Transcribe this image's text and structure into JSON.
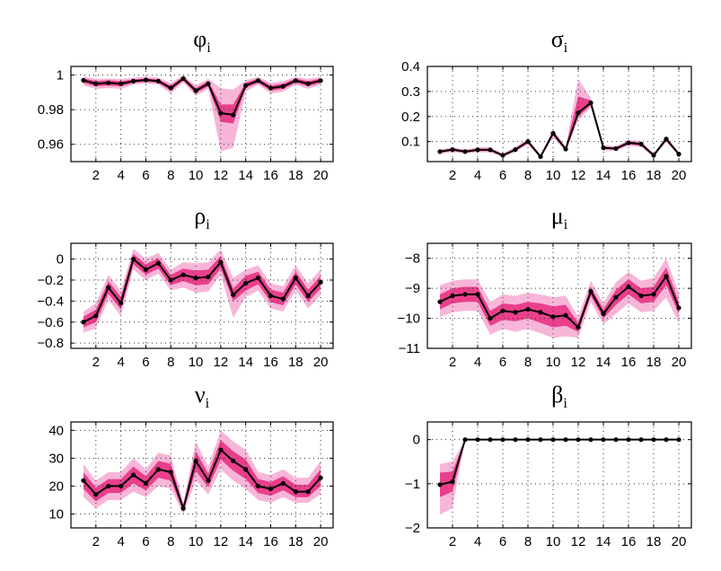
{
  "chart_data": [
    {
      "type": "line",
      "title": "φ",
      "subscript": "i",
      "x": [
        1,
        2,
        3,
        4,
        5,
        6,
        7,
        8,
        9,
        10,
        11,
        12,
        13,
        14,
        15,
        16,
        17,
        18,
        19,
        20
      ],
      "xlim": [
        0,
        21
      ],
      "ylim": [
        0.95,
        1.005
      ],
      "xticks": [
        "2",
        "4",
        "6",
        "8",
        "10",
        "12",
        "14",
        "16",
        "18",
        "20"
      ],
      "yticks": [
        {
          "value": 0.96,
          "label": "0.96"
        },
        {
          "value": 0.98,
          "label": "0.98"
        },
        {
          "value": 1.0,
          "label": "1"
        }
      ],
      "series": [
        {
          "name": "median",
          "values": [
            0.997,
            0.995,
            0.9955,
            0.995,
            0.9965,
            0.9972,
            0.9965,
            0.9925,
            0.998,
            0.991,
            0.995,
            0.978,
            0.977,
            0.994,
            0.9968,
            0.9925,
            0.9935,
            0.9968,
            0.995,
            0.9968
          ]
        },
        {
          "name": "inner_low",
          "values": [
            0.9955,
            0.9935,
            0.994,
            0.9935,
            0.9955,
            0.9962,
            0.9955,
            0.991,
            0.9968,
            0.9895,
            0.9935,
            0.973,
            0.972,
            0.9925,
            0.9955,
            0.991,
            0.992,
            0.9955,
            0.9935,
            0.9955
          ]
        },
        {
          "name": "inner_high",
          "values": [
            0.9982,
            0.9965,
            0.997,
            0.9965,
            0.9975,
            0.998,
            0.9975,
            0.994,
            0.999,
            0.9925,
            0.9965,
            0.983,
            0.983,
            0.9955,
            0.998,
            0.994,
            0.995,
            0.998,
            0.9965,
            0.998
          ]
        },
        {
          "name": "outer_low",
          "values": [
            0.994,
            0.992,
            0.9925,
            0.992,
            0.9945,
            0.9952,
            0.9945,
            0.9893,
            0.9958,
            0.988,
            0.992,
            0.956,
            0.958,
            0.9905,
            0.9945,
            0.9893,
            0.9905,
            0.9945,
            0.992,
            0.9945
          ]
        },
        {
          "name": "outer_high",
          "values": [
            0.9992,
            0.9978,
            0.998,
            0.9978,
            0.9985,
            0.999,
            0.9985,
            0.9955,
            0.9998,
            0.994,
            0.9978,
            0.9925,
            0.9915,
            0.997,
            0.999,
            0.9955,
            0.9965,
            0.999,
            0.9978,
            0.999
          ]
        }
      ]
    },
    {
      "type": "line",
      "title": "σ",
      "subscript": "i",
      "x": [
        1,
        2,
        3,
        4,
        5,
        6,
        7,
        8,
        9,
        10,
        11,
        12,
        13,
        14,
        15,
        16,
        17,
        18,
        19,
        20
      ],
      "xlim": [
        0,
        21
      ],
      "ylim": [
        0.02,
        0.4
      ],
      "xticks": [
        "2",
        "4",
        "6",
        "8",
        "10",
        "12",
        "14",
        "16",
        "18",
        "20"
      ],
      "yticks": [
        {
          "value": 0.1,
          "label": "0.1"
        },
        {
          "value": 0.2,
          "label": "0.2"
        },
        {
          "value": 0.3,
          "label": "0.3"
        },
        {
          "value": 0.4,
          "label": "0.4"
        }
      ],
      "series": [
        {
          "name": "median",
          "values": [
            0.06,
            0.068,
            0.06,
            0.067,
            0.067,
            0.045,
            0.068,
            0.1,
            0.04,
            0.133,
            0.07,
            0.215,
            0.255,
            0.075,
            0.072,
            0.095,
            0.09,
            0.045,
            0.11,
            0.05
          ]
        },
        {
          "name": "inner_low",
          "values": [
            0.056,
            0.063,
            0.056,
            0.062,
            0.062,
            0.041,
            0.063,
            0.094,
            0.036,
            0.125,
            0.065,
            0.2,
            0.245,
            0.07,
            0.067,
            0.089,
            0.084,
            0.041,
            0.104,
            0.046
          ]
        },
        {
          "name": "inner_high",
          "values": [
            0.064,
            0.073,
            0.064,
            0.072,
            0.072,
            0.049,
            0.073,
            0.106,
            0.044,
            0.141,
            0.075,
            0.28,
            0.265,
            0.08,
            0.077,
            0.101,
            0.096,
            0.049,
            0.116,
            0.054
          ]
        },
        {
          "name": "outer_low",
          "values": [
            0.052,
            0.058,
            0.052,
            0.057,
            0.057,
            0.037,
            0.058,
            0.088,
            0.032,
            0.117,
            0.06,
            0.185,
            0.235,
            0.065,
            0.062,
            0.083,
            0.078,
            0.037,
            0.098,
            0.042
          ]
        },
        {
          "name": "outer_high",
          "values": [
            0.068,
            0.078,
            0.068,
            0.077,
            0.077,
            0.053,
            0.078,
            0.112,
            0.048,
            0.149,
            0.08,
            0.35,
            0.275,
            0.085,
            0.082,
            0.107,
            0.102,
            0.053,
            0.122,
            0.058
          ]
        }
      ]
    },
    {
      "type": "line",
      "title": "ρ",
      "subscript": "i",
      "x": [
        1,
        2,
        3,
        4,
        5,
        6,
        7,
        8,
        9,
        10,
        11,
        12,
        13,
        14,
        15,
        16,
        17,
        18,
        19,
        20
      ],
      "xlim": [
        0,
        21
      ],
      "ylim": [
        -0.85,
        0.15
      ],
      "xticks": [
        "2",
        "4",
        "6",
        "8",
        "10",
        "12",
        "14",
        "16",
        "18",
        "20"
      ],
      "yticks": [
        {
          "value": -0.8,
          "label": "−0.8"
        },
        {
          "value": -0.6,
          "label": "−0.6"
        },
        {
          "value": -0.4,
          "label": "−0.4"
        },
        {
          "value": -0.2,
          "label": "−0.2"
        },
        {
          "value": 0,
          "label": "0"
        }
      ],
      "series": [
        {
          "name": "median",
          "values": [
            -0.6,
            -0.54,
            -0.27,
            -0.42,
            0.0,
            -0.1,
            -0.04,
            -0.2,
            -0.15,
            -0.18,
            -0.17,
            -0.03,
            -0.34,
            -0.23,
            -0.18,
            -0.35,
            -0.38,
            -0.18,
            -0.35,
            -0.22
          ]
        },
        {
          "name": "inner_low",
          "values": [
            -0.65,
            -0.6,
            -0.33,
            -0.48,
            -0.05,
            -0.15,
            -0.09,
            -0.25,
            -0.21,
            -0.25,
            -0.24,
            -0.09,
            -0.4,
            -0.3,
            -0.24,
            -0.41,
            -0.44,
            -0.24,
            -0.41,
            -0.28
          ]
        },
        {
          "name": "inner_high",
          "values": [
            -0.55,
            -0.48,
            -0.21,
            -0.36,
            0.05,
            -0.05,
            0.01,
            -0.15,
            -0.09,
            -0.11,
            -0.1,
            0.03,
            -0.28,
            -0.16,
            -0.12,
            -0.29,
            -0.32,
            -0.12,
            -0.29,
            -0.16
          ]
        },
        {
          "name": "outer_low",
          "values": [
            -0.7,
            -0.66,
            -0.39,
            -0.54,
            -0.1,
            -0.2,
            -0.14,
            -0.3,
            -0.27,
            -0.32,
            -0.31,
            -0.15,
            -0.56,
            -0.36,
            -0.3,
            -0.47,
            -0.5,
            -0.3,
            -0.47,
            -0.34
          ]
        },
        {
          "name": "outer_high",
          "values": [
            -0.5,
            -0.42,
            -0.15,
            -0.3,
            0.1,
            0.0,
            0.06,
            -0.1,
            -0.03,
            -0.04,
            -0.03,
            0.09,
            -0.18,
            -0.1,
            -0.06,
            -0.23,
            -0.26,
            -0.06,
            -0.23,
            -0.1
          ]
        }
      ]
    },
    {
      "type": "line",
      "title": "μ",
      "subscript": "i",
      "x": [
        1,
        2,
        3,
        4,
        5,
        6,
        7,
        8,
        9,
        10,
        11,
        12,
        13,
        14,
        15,
        16,
        17,
        18,
        19,
        20
      ],
      "xlim": [
        0,
        21
      ],
      "ylim": [
        -11,
        -7.5
      ],
      "xticks": [
        "2",
        "4",
        "6",
        "8",
        "10",
        "12",
        "14",
        "16",
        "18",
        "20"
      ],
      "yticks": [
        {
          "value": -11,
          "label": "−11"
        },
        {
          "value": -10,
          "label": "−10"
        },
        {
          "value": -9,
          "label": "−9"
        },
        {
          "value": -8,
          "label": "−8"
        }
      ],
      "series": [
        {
          "name": "median",
          "values": [
            -9.45,
            -9.25,
            -9.2,
            -9.2,
            -10.0,
            -9.75,
            -9.8,
            -9.7,
            -9.8,
            -9.95,
            -9.9,
            -10.3,
            -9.1,
            -9.85,
            -9.3,
            -8.95,
            -9.25,
            -9.2,
            -8.6,
            -9.65
          ]
        },
        {
          "name": "inner_low",
          "values": [
            -9.7,
            -9.5,
            -9.45,
            -9.45,
            -10.25,
            -10.05,
            -10.1,
            -10.0,
            -10.15,
            -10.3,
            -10.25,
            -10.45,
            -9.25,
            -10.0,
            -9.55,
            -9.2,
            -9.5,
            -9.45,
            -8.9,
            -9.85
          ]
        },
        {
          "name": "inner_high",
          "values": [
            -9.2,
            -9.0,
            -8.95,
            -8.95,
            -9.75,
            -9.5,
            -9.55,
            -9.45,
            -9.5,
            -9.6,
            -9.55,
            -10.15,
            -8.95,
            -9.7,
            -9.05,
            -8.7,
            -9.0,
            -8.95,
            -8.3,
            -9.45
          ]
        },
        {
          "name": "outer_low",
          "values": [
            -9.95,
            -9.8,
            -9.75,
            -9.75,
            -10.55,
            -10.35,
            -10.45,
            -10.35,
            -10.5,
            -10.65,
            -10.6,
            -10.65,
            -9.45,
            -10.2,
            -9.85,
            -9.5,
            -9.8,
            -9.75,
            -9.3,
            -10.15
          ]
        },
        {
          "name": "outer_high",
          "values": [
            -8.9,
            -8.75,
            -8.7,
            -8.7,
            -9.45,
            -9.2,
            -9.25,
            -9.15,
            -9.2,
            -9.3,
            -9.25,
            -9.95,
            -8.75,
            -9.5,
            -8.8,
            -8.45,
            -8.75,
            -8.65,
            -8.0,
            -9.15
          ]
        }
      ]
    },
    {
      "type": "line",
      "title": "ν",
      "subscript": "i",
      "x": [
        1,
        2,
        3,
        4,
        5,
        6,
        7,
        8,
        9,
        10,
        11,
        12,
        13,
        14,
        15,
        16,
        17,
        18,
        19,
        20
      ],
      "xlim": [
        0,
        21
      ],
      "ylim": [
        5,
        43
      ],
      "xticks": [
        "2",
        "4",
        "6",
        "8",
        "10",
        "12",
        "14",
        "16",
        "18",
        "20"
      ],
      "yticks": [
        {
          "value": 10,
          "label": "10"
        },
        {
          "value": 20,
          "label": "20"
        },
        {
          "value": 30,
          "label": "30"
        },
        {
          "value": 40,
          "label": "40"
        }
      ],
      "series": [
        {
          "name": "median",
          "values": [
            22,
            17,
            20,
            20,
            24,
            21,
            26,
            25,
            12,
            29,
            22,
            33,
            29,
            26,
            20,
            19,
            21,
            18,
            18,
            23
          ]
        },
        {
          "name": "inner_low",
          "values": [
            19,
            14.5,
            17.5,
            17.5,
            21,
            18.5,
            23,
            22,
            11,
            25.5,
            19.5,
            29.5,
            25.5,
            22.5,
            17.5,
            16.5,
            18.5,
            16,
            16,
            20
          ]
        },
        {
          "name": "inner_high",
          "values": [
            25,
            19.5,
            22.5,
            22.5,
            27,
            23.5,
            29,
            28,
            13,
            32.5,
            24.5,
            36.5,
            32.5,
            29.5,
            22.5,
            21.5,
            23.5,
            20.5,
            20.5,
            26
          ]
        },
        {
          "name": "outer_low",
          "values": [
            16,
            12,
            15,
            15,
            18,
            16,
            20,
            19,
            10,
            22,
            17,
            26,
            22,
            19,
            15,
            14,
            16,
            14,
            14,
            17
          ]
        },
        {
          "name": "outer_high",
          "values": [
            28,
            22,
            25,
            25,
            30,
            26,
            32,
            31,
            14,
            36,
            27,
            40,
            36,
            33,
            25,
            24,
            26,
            23,
            23,
            29
          ]
        }
      ]
    },
    {
      "type": "line",
      "title": "β",
      "subscript": "i",
      "x": [
        1,
        2,
        3,
        4,
        5,
        6,
        7,
        8,
        9,
        10,
        11,
        12,
        13,
        14,
        15,
        16,
        17,
        18,
        19,
        20
      ],
      "xlim": [
        0,
        21
      ],
      "ylim": [
        -2,
        0.4
      ],
      "xticks": [
        "2",
        "4",
        "6",
        "8",
        "10",
        "12",
        "14",
        "16",
        "18",
        "20"
      ],
      "yticks": [
        {
          "value": -2,
          "label": "−2"
        },
        {
          "value": -1,
          "label": "−1"
        },
        {
          "value": 0,
          "label": "0"
        }
      ],
      "series": [
        {
          "name": "median",
          "values": [
            -1.02,
            -0.95,
            0,
            0,
            0,
            0,
            0,
            0,
            0,
            0,
            0,
            0,
            0,
            0,
            0,
            0,
            0,
            0,
            0,
            0
          ]
        },
        {
          "name": "inner_low",
          "values": [
            -1.3,
            -1.18,
            0,
            0,
            0,
            0,
            0,
            0,
            0,
            0,
            0,
            0,
            0,
            0,
            0,
            0,
            0,
            0,
            0,
            0
          ]
        },
        {
          "name": "inner_high",
          "values": [
            -0.75,
            -0.72,
            0,
            0,
            0,
            0,
            0,
            0,
            0,
            0,
            0,
            0,
            0,
            0,
            0,
            0,
            0,
            0,
            0,
            0
          ]
        },
        {
          "name": "outer_low",
          "values": [
            -1.7,
            -1.55,
            0,
            0,
            0,
            0,
            0,
            0,
            0,
            0,
            0,
            0,
            0,
            0,
            0,
            0,
            0,
            0,
            0,
            0
          ]
        },
        {
          "name": "outer_high",
          "values": [
            -0.55,
            -0.5,
            0,
            0,
            0,
            0,
            0,
            0,
            0,
            0,
            0,
            0,
            0,
            0,
            0,
            0,
            0,
            0,
            0,
            0
          ]
        }
      ]
    }
  ]
}
